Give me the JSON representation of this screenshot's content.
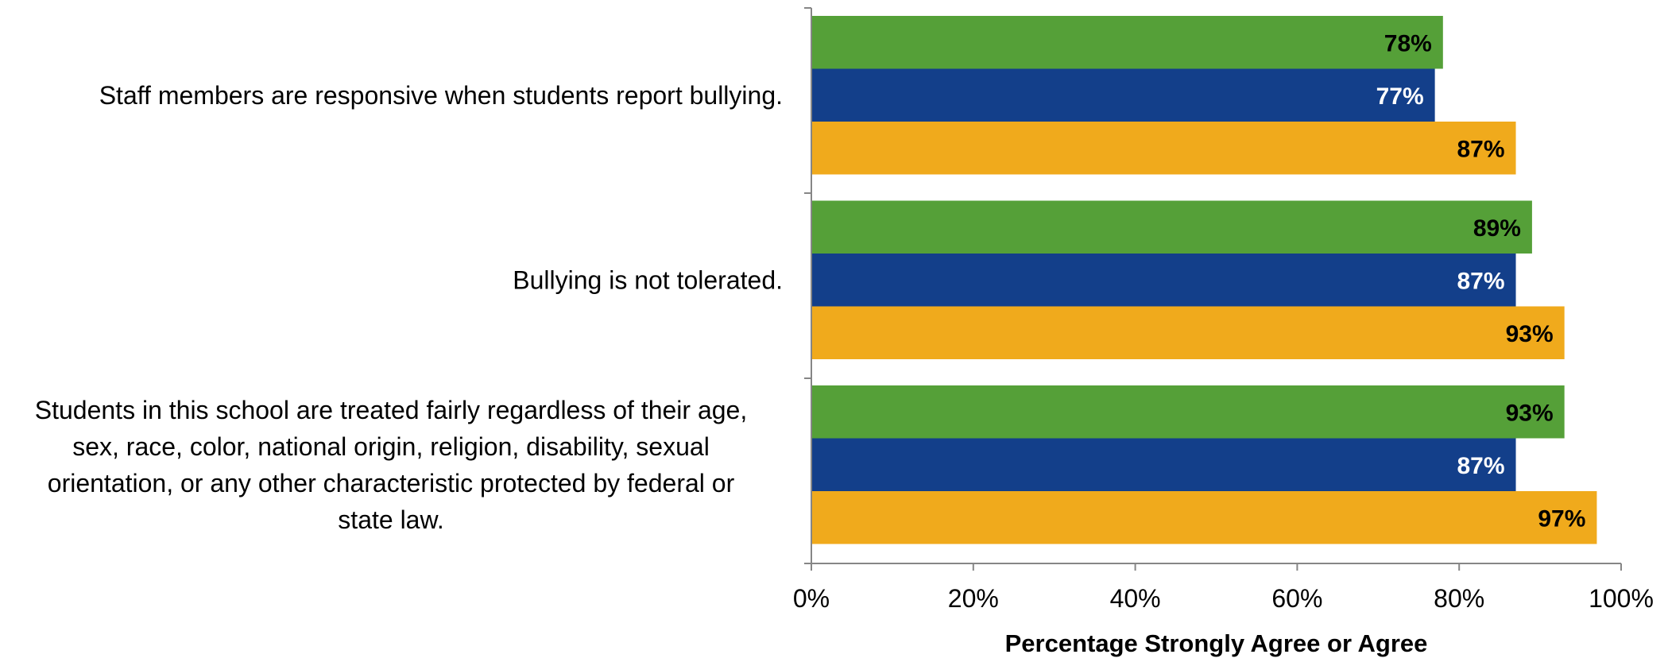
{
  "chart_data": {
    "type": "bar",
    "orientation": "horizontal",
    "categories": [
      [
        "Staff members are responsive when students report bullying."
      ],
      [
        "Bullying is not tolerated."
      ],
      [
        "Students in this school are treated fairly regardless of their  age,",
        "sex, race, color, national origin, religion, disability, sexual",
        "orientation, or any other characteristic protected by federal or",
        "state law."
      ]
    ],
    "series": [
      {
        "color": "#55A038",
        "label_color": "#000000",
        "values": [
          78,
          89,
          93
        ],
        "labels": [
          "78%",
          "89%",
          "93%"
        ]
      },
      {
        "color": "#133F8A",
        "label_color": "#FFFFFF",
        "values": [
          77,
          87,
          87
        ],
        "labels": [
          "77%",
          "87%",
          "87%"
        ]
      },
      {
        "color": "#F0AA1C",
        "label_color": "#000000",
        "values": [
          87,
          93,
          97
        ],
        "labels": [
          "87%",
          "93%",
          "97%"
        ]
      }
    ],
    "xlim": [
      0,
      100
    ],
    "x_ticks": [
      0,
      20,
      40,
      60,
      80,
      100
    ],
    "x_tick_labels": [
      "0%",
      "20%",
      "40%",
      "60%",
      "80%",
      "100%"
    ],
    "xlabel": "Percentage Strongly Agree or Agree",
    "ylabel": "",
    "title": "",
    "grid": false,
    "legend": "none",
    "axis_color": "#868686"
  }
}
